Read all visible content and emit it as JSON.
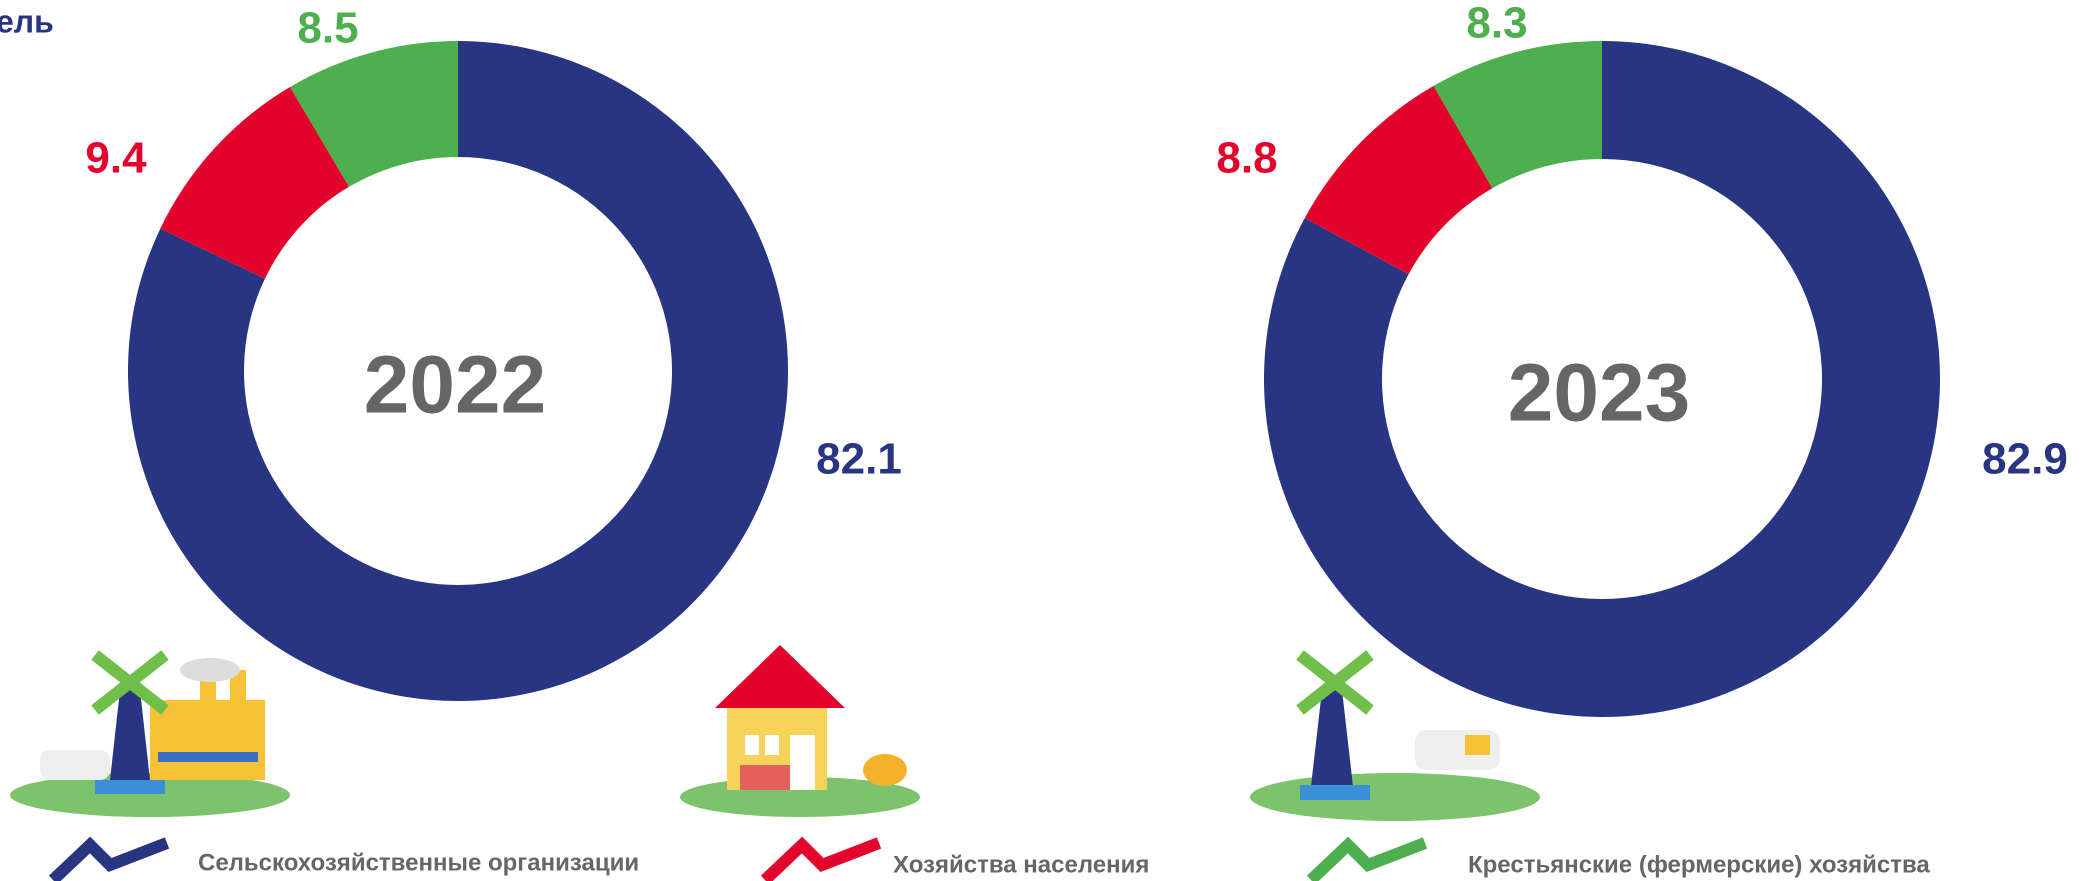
{
  "title_fragment": "ель",
  "legend": [
    "Сельскохозяйственные  организации",
    "Хозяйства населения",
    "Крестьянские (фермерские) хозяйства"
  ],
  "chart_data": [
    {
      "type": "donut",
      "center_label": "2022",
      "values": [
        82.1,
        9.4,
        8.5
      ],
      "colors": [
        "#283583",
        "#e3042c",
        "#4daf4e"
      ]
    },
    {
      "type": "donut",
      "center_label": "2023",
      "values": [
        82.9,
        8.8,
        8.3
      ],
      "colors": [
        "#283583",
        "#e3042c",
        "#4daf4e"
      ]
    }
  ]
}
